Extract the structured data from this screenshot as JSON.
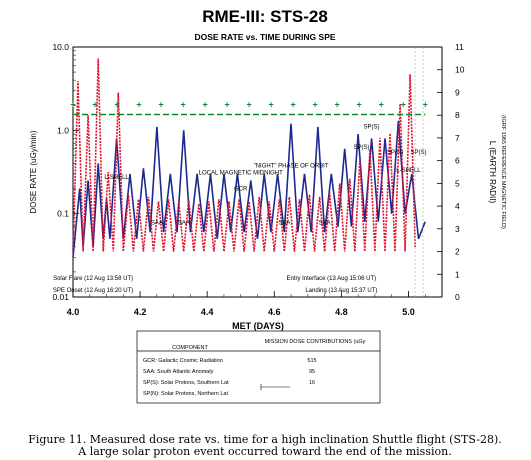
{
  "chart_data": {
    "type": "line",
    "title": "RME-III:  STS-28",
    "subtitle": "DOSE RATE vs. TIME DURING SPE",
    "xlabel": "MET (DAYS)",
    "ylabel": "DOSE RATE (uGy/min)",
    "y2label": "L (EARTH RADII)",
    "y2sublabel": "(IGRF 1965 REFERENCE MAGNETIC FIELD)",
    "xlim": [
      4.0,
      5.1
    ],
    "ylim": [
      0.01,
      10.0
    ],
    "yscale": "log",
    "y2lim": [
      0,
      11
    ],
    "x_ticks": [
      "4.0",
      "4.2",
      "4.4",
      "4.6",
      "4.8",
      "5.0"
    ],
    "y_ticks": [
      "10.0",
      "1.0",
      "0.1",
      "0.01"
    ],
    "y2_ticks": [
      "11",
      "10",
      "9",
      "8",
      "7",
      "6",
      "5",
      "4",
      "3",
      "2",
      "1",
      "0"
    ],
    "series": [
      {
        "role": "dose",
        "color": "#1c2a8f",
        "x": [
          4.0,
          4.02,
          4.03,
          4.045,
          4.06,
          4.075,
          4.09,
          4.1,
          4.11,
          4.13,
          4.15,
          4.17,
          4.19,
          4.21,
          4.23,
          4.25,
          4.27,
          4.29,
          4.31,
          4.33,
          4.35,
          4.37,
          4.39,
          4.41,
          4.43,
          4.45,
          4.47,
          4.49,
          4.51,
          4.53,
          4.55,
          4.57,
          4.59,
          4.61,
          4.63,
          4.65,
          4.67,
          4.69,
          4.71,
          4.73,
          4.75,
          4.77,
          4.79,
          4.81,
          4.83,
          4.85,
          4.87,
          4.89,
          4.91,
          4.93,
          4.95,
          4.97,
          4.99,
          5.01,
          5.03,
          5.05
        ],
        "y": [
          0.03,
          0.2,
          0.04,
          0.25,
          0.04,
          0.4,
          0.05,
          0.15,
          0.05,
          0.8,
          0.05,
          0.3,
          0.05,
          0.35,
          0.06,
          1.1,
          0.06,
          0.3,
          0.06,
          1.0,
          0.06,
          0.3,
          0.06,
          0.3,
          0.05,
          0.3,
          0.06,
          0.3,
          0.06,
          0.25,
          0.05,
          0.3,
          0.06,
          0.3,
          0.06,
          1.2,
          0.06,
          0.3,
          0.06,
          1.1,
          0.06,
          0.3,
          0.07,
          0.6,
          0.07,
          0.9,
          0.08,
          0.8,
          0.08,
          0.8,
          0.1,
          1.3,
          0.1,
          0.3,
          0.05,
          0.08
        ]
      },
      {
        "role": "L-shell",
        "color": "#e0102a",
        "x": [
          4.0,
          4.015,
          4.03,
          4.045,
          4.06,
          4.075,
          4.09,
          4.105,
          4.12,
          4.135,
          4.15,
          4.165,
          4.18,
          4.195,
          4.21,
          4.225,
          4.24,
          4.255,
          4.27,
          4.285,
          4.3,
          4.315,
          4.33,
          4.345,
          4.36,
          4.375,
          4.39,
          4.405,
          4.42,
          4.435,
          4.45,
          4.465,
          4.48,
          4.495,
          4.51,
          4.525,
          4.54,
          4.555,
          4.57,
          4.585,
          4.6,
          4.615,
          4.63,
          4.645,
          4.66,
          4.675,
          4.69,
          4.705,
          4.72,
          4.735,
          4.75,
          4.765,
          4.78,
          4.795,
          4.81,
          4.825,
          4.84,
          4.855,
          4.87,
          4.885,
          4.9,
          4.915,
          4.93,
          4.945,
          4.96,
          4.975,
          4.99,
          5.005,
          5.02
        ],
        "y": [
          2,
          9.5,
          2,
          8,
          2,
          10.5,
          2,
          5.5,
          2,
          9,
          2,
          4.5,
          2,
          4.3,
          2,
          4.4,
          2,
          4.2,
          2,
          4.3,
          2,
          4.2,
          2,
          4.3,
          2,
          4.1,
          2,
          4.2,
          2,
          4.3,
          2,
          4.2,
          2,
          4.3,
          2,
          4.2,
          2,
          4.4,
          2,
          4.2,
          2,
          4.3,
          2,
          4.4,
          2,
          4.3,
          2,
          4.5,
          2,
          4.4,
          2,
          4.6,
          2,
          5,
          2,
          5.2,
          2,
          6,
          2,
          6.5,
          2,
          7,
          2,
          7.2,
          2,
          8.5,
          2,
          9.8,
          2.2
        ]
      },
      {
        "role": "threshold",
        "color": "#0c8a2c",
        "style": "dashed",
        "x": [
          4.0,
          5.05
        ],
        "y": [
          1.55,
          1.55
        ]
      }
    ],
    "annotations": [
      {
        "text": "L-SHELL",
        "x": 4.13,
        "y": 5.2
      },
      {
        "text": "L-SHELL",
        "x": 5.0,
        "y": 5.5
      },
      {
        "text": "LOCAL MAGNETIC MIDNIGHT",
        "x": 4.5,
        "y": 5.4
      },
      {
        "text": "\"NIGHT\" PHASE OF ORBIT",
        "x": 4.65,
        "y": 5.7
      },
      {
        "text": "SAA",
        "x": 4.25,
        "y": 3.2
      },
      {
        "text": "SAA",
        "x": 4.33,
        "y": 3.2
      },
      {
        "text": "SAA",
        "x": 4.63,
        "y": 3.2
      },
      {
        "text": "SAA",
        "x": 4.75,
        "y": 3.2
      },
      {
        "text": "SP(S)",
        "x": 4.89,
        "y": 1.05
      },
      {
        "text": "SP(S)",
        "x": 4.86,
        "y": 0.6
      },
      {
        "text": "SP(N)",
        "x": 4.96,
        "y": 0.52
      },
      {
        "text": "SP(S)",
        "x": 5.03,
        "y": 0.52
      },
      {
        "text": "GCR",
        "x": 4.5,
        "y": 0.19
      },
      {
        "text": "Solar Flare (12 Aug   13:58 UT)",
        "x": 4.06,
        "y": 0.016
      },
      {
        "text": "SPE Onset (12 Aug  16:20 UT)",
        "x": 4.06,
        "y": 0.0115
      },
      {
        "text": "Entry Interface (13 Aug  15:06 UT)",
        "x": 4.77,
        "y": 0.016
      },
      {
        "text": "Landing (13 Aug  15:37 UT)",
        "x": 4.8,
        "y": 0.0115
      }
    ],
    "legend": {
      "header": [
        "COMPONENT",
        "MISSION DOSE CONTRIBUTIONS (uGy"
      ],
      "rows": [
        {
          "component": "GCR: Galactic Cosmic Radiation",
          "value": "515"
        },
        {
          "component": "SAA: South Atlantic Anomaly",
          "value": "95"
        },
        {
          "component": "SP(S): Solar Protons, Southern Lat",
          "value": "16"
        },
        {
          "component": "SP(N): Solar Protons, Northern Lat",
          "value": ""
        }
      ]
    }
  },
  "caption": {
    "line1": "Figure 11. Measured dose rate vs. time for a high inclination Shuttle flight (STS-28).",
    "line2": "A large solar proton event occurred toward the end of the mission."
  }
}
